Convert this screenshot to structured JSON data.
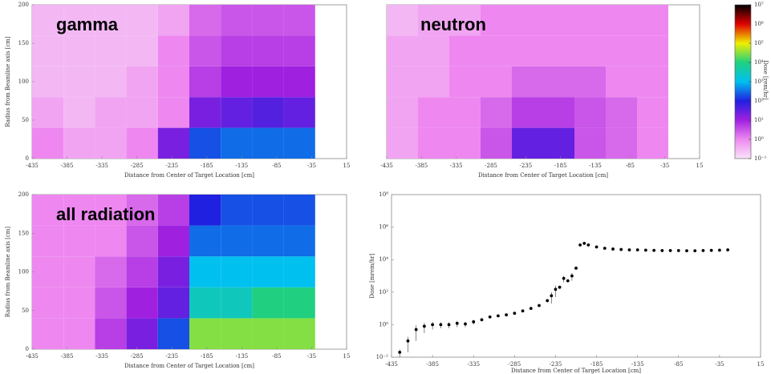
{
  "chart_data": [
    {
      "type": "heatmap",
      "annotation": "gamma",
      "xlabel": "Distance from Center of Target Location [cm]",
      "ylabel": "Radius from Beamline axis [cm]",
      "xlim": [
        -435,
        15
      ],
      "xticks": [
        -435,
        -385,
        -335,
        -285,
        -235,
        -185,
        -135,
        -85,
        -35,
        15
      ],
      "ylim": [
        0,
        200
      ],
      "yticks": [
        0,
        50,
        100,
        150,
        200
      ],
      "x_bins": [
        -435,
        -390,
        -345,
        -300,
        -255,
        -210,
        -165,
        -120,
        -75,
        -30,
        15
      ],
      "y_bins": [
        0,
        40,
        80,
        120,
        160,
        200
      ],
      "values": [
        [
          1,
          0.5,
          0.5,
          1,
          20,
          200,
          300,
          300,
          300,
          null
        ],
        [
          0.5,
          0.3,
          0.5,
          0.5,
          1,
          20,
          30,
          40,
          30,
          null
        ],
        [
          0.3,
          0.3,
          0.3,
          0.5,
          1,
          5,
          10,
          10,
          10,
          null
        ],
        [
          0.3,
          0.3,
          0.3,
          0.3,
          1,
          3,
          5,
          5,
          5,
          null
        ],
        [
          0.3,
          0.3,
          0.3,
          0.3,
          0.5,
          2,
          3,
          3,
          3,
          null
        ]
      ]
    },
    {
      "type": "heatmap",
      "annotation": "neutron",
      "xlabel": "Distance from Center of Target Location [cm]",
      "xlim": [
        -435,
        15
      ],
      "xticks": [
        -435,
        -385,
        -335,
        -285,
        -235,
        -185,
        -135,
        -85,
        -35,
        15
      ],
      "ylim": [
        0,
        200
      ],
      "x_bins": [
        -435,
        -390,
        -345,
        -300,
        -255,
        -210,
        -165,
        -120,
        -75,
        -30,
        15
      ],
      "y_bins": [
        0,
        40,
        80,
        120,
        160,
        200
      ],
      "values": [
        [
          0.5,
          1,
          1,
          3,
          30,
          30,
          3,
          2,
          1,
          null
        ],
        [
          0.5,
          1,
          1,
          2,
          5,
          5,
          3,
          2,
          1,
          null
        ],
        [
          0.5,
          0.5,
          1,
          1,
          2,
          2,
          2,
          1,
          1,
          null
        ],
        [
          0.5,
          0.5,
          1,
          1,
          1,
          1,
          1,
          1,
          1,
          null
        ],
        [
          0.3,
          0.5,
          0.5,
          1,
          1,
          1,
          1,
          1,
          1,
          null
        ]
      ],
      "colorbar": {
        "label": "Dose [rem/hr]",
        "lim": [
          0.1,
          10000000
        ],
        "log": true,
        "ticks": [
          {
            "value": 0.1,
            "label": "10⁻¹"
          },
          {
            "value": 1,
            "label": "10⁰"
          },
          {
            "value": 10,
            "label": "10¹"
          },
          {
            "value": 100,
            "label": "10²"
          },
          {
            "value": 1000,
            "label": "10³"
          },
          {
            "value": 10000,
            "label": "10⁴"
          },
          {
            "value": 100000,
            "label": "10⁵"
          },
          {
            "value": 1000000,
            "label": "10⁶"
          },
          {
            "value": 10000000,
            "label": "10⁷"
          }
        ],
        "colors": [
          "#f8e4f8",
          "#ee88f0",
          "#a020e0",
          "#2020e0",
          "#00c0f0",
          "#20d080",
          "#f0f000",
          "#e00000",
          "#000000"
        ]
      }
    },
    {
      "type": "heatmap",
      "annotation": "all radiation",
      "xlabel": "Distance from Center of Target Location [cm]",
      "ylabel": "Radius from Beamline axis [cm]",
      "xlim": [
        -435,
        15
      ],
      "xticks": [
        -435,
        -385,
        -335,
        -285,
        -235,
        -185,
        -135,
        -85,
        -35,
        15
      ],
      "ylim": [
        0,
        200
      ],
      "yticks": [
        0,
        50,
        100,
        150,
        200
      ],
      "x_bins": [
        -435,
        -390,
        -345,
        -300,
        -255,
        -210,
        -165,
        -120,
        -75,
        -30,
        15
      ],
      "y_bins": [
        0,
        40,
        80,
        120,
        160,
        200
      ],
      "values": [
        [
          1,
          1,
          5,
          20,
          200,
          30000,
          30000,
          30000,
          30000,
          null
        ],
        [
          1,
          1,
          3,
          10,
          30,
          3000,
          3000,
          10000,
          10000,
          null
        ],
        [
          1,
          1,
          2,
          5,
          20,
          1000,
          1000,
          1000,
          1000,
          null
        ],
        [
          1,
          1,
          1,
          3,
          10,
          300,
          300,
          300,
          300,
          null
        ],
        [
          1,
          1,
          1,
          2,
          5,
          100,
          200,
          200,
          200,
          null
        ]
      ]
    },
    {
      "type": "scatter",
      "xlabel": "Distance from Center of Target Location [cm]",
      "ylabel": "Dose [mrem/hr]",
      "ylog": true,
      "color": "#000000",
      "xlim": [
        -435,
        15
      ],
      "xticks": [
        -435,
        -385,
        -335,
        -285,
        -235,
        -185,
        -135,
        -85,
        -35,
        15
      ],
      "ylim": [
        0.01,
        100000000
      ],
      "yticks": [
        {
          "value": 0.01,
          "label": "10⁻²"
        },
        {
          "value": 1,
          "label": "10⁰"
        },
        {
          "value": 100,
          "label": "10²"
        },
        {
          "value": 10000,
          "label": "10⁴"
        },
        {
          "value": 1000000,
          "label": "10⁶"
        },
        {
          "value": 100000000,
          "label": "10⁸"
        }
      ],
      "x": [
        -425,
        -415,
        -405,
        -395,
        -385,
        -375,
        -365,
        -355,
        -345,
        -335,
        -325,
        -315,
        -305,
        -295,
        -285,
        -275,
        -265,
        -255,
        -245,
        -240,
        -235,
        -230,
        -225,
        -220,
        -215,
        -210,
        -205,
        -200,
        -195,
        -185,
        -175,
        -165,
        -155,
        -145,
        -135,
        -125,
        -115,
        -105,
        -95,
        -85,
        -75,
        -65,
        -55,
        -45,
        -35,
        -25
      ],
      "y": [
        0.02,
        0.1,
        0.5,
        0.8,
        1,
        1,
        1,
        1.2,
        1.1,
        1.5,
        2,
        3,
        3.5,
        4,
        5,
        7,
        10,
        15,
        30,
        60,
        150,
        200,
        700,
        500,
        1000,
        3000,
        80000,
        100000,
        80000,
        60000,
        50000,
        45000,
        42000,
        40000,
        40000,
        38000,
        37000,
        36000,
        36000,
        36000,
        35000,
        35000,
        36000,
        37000,
        38000,
        40000
      ],
      "errors": [
        0.01,
        0.08,
        0.4,
        0.5,
        0.5,
        0.4,
        0.4,
        0.5,
        0.4,
        0.5,
        null,
        null,
        null,
        null,
        null,
        null,
        null,
        null,
        null,
        40,
        100,
        null,
        300,
        null,
        500,
        null,
        null,
        null,
        null,
        null,
        null,
        null,
        null,
        null,
        null,
        null,
        null,
        null,
        null,
        null,
        null,
        null,
        null,
        null,
        null,
        null
      ]
    }
  ]
}
